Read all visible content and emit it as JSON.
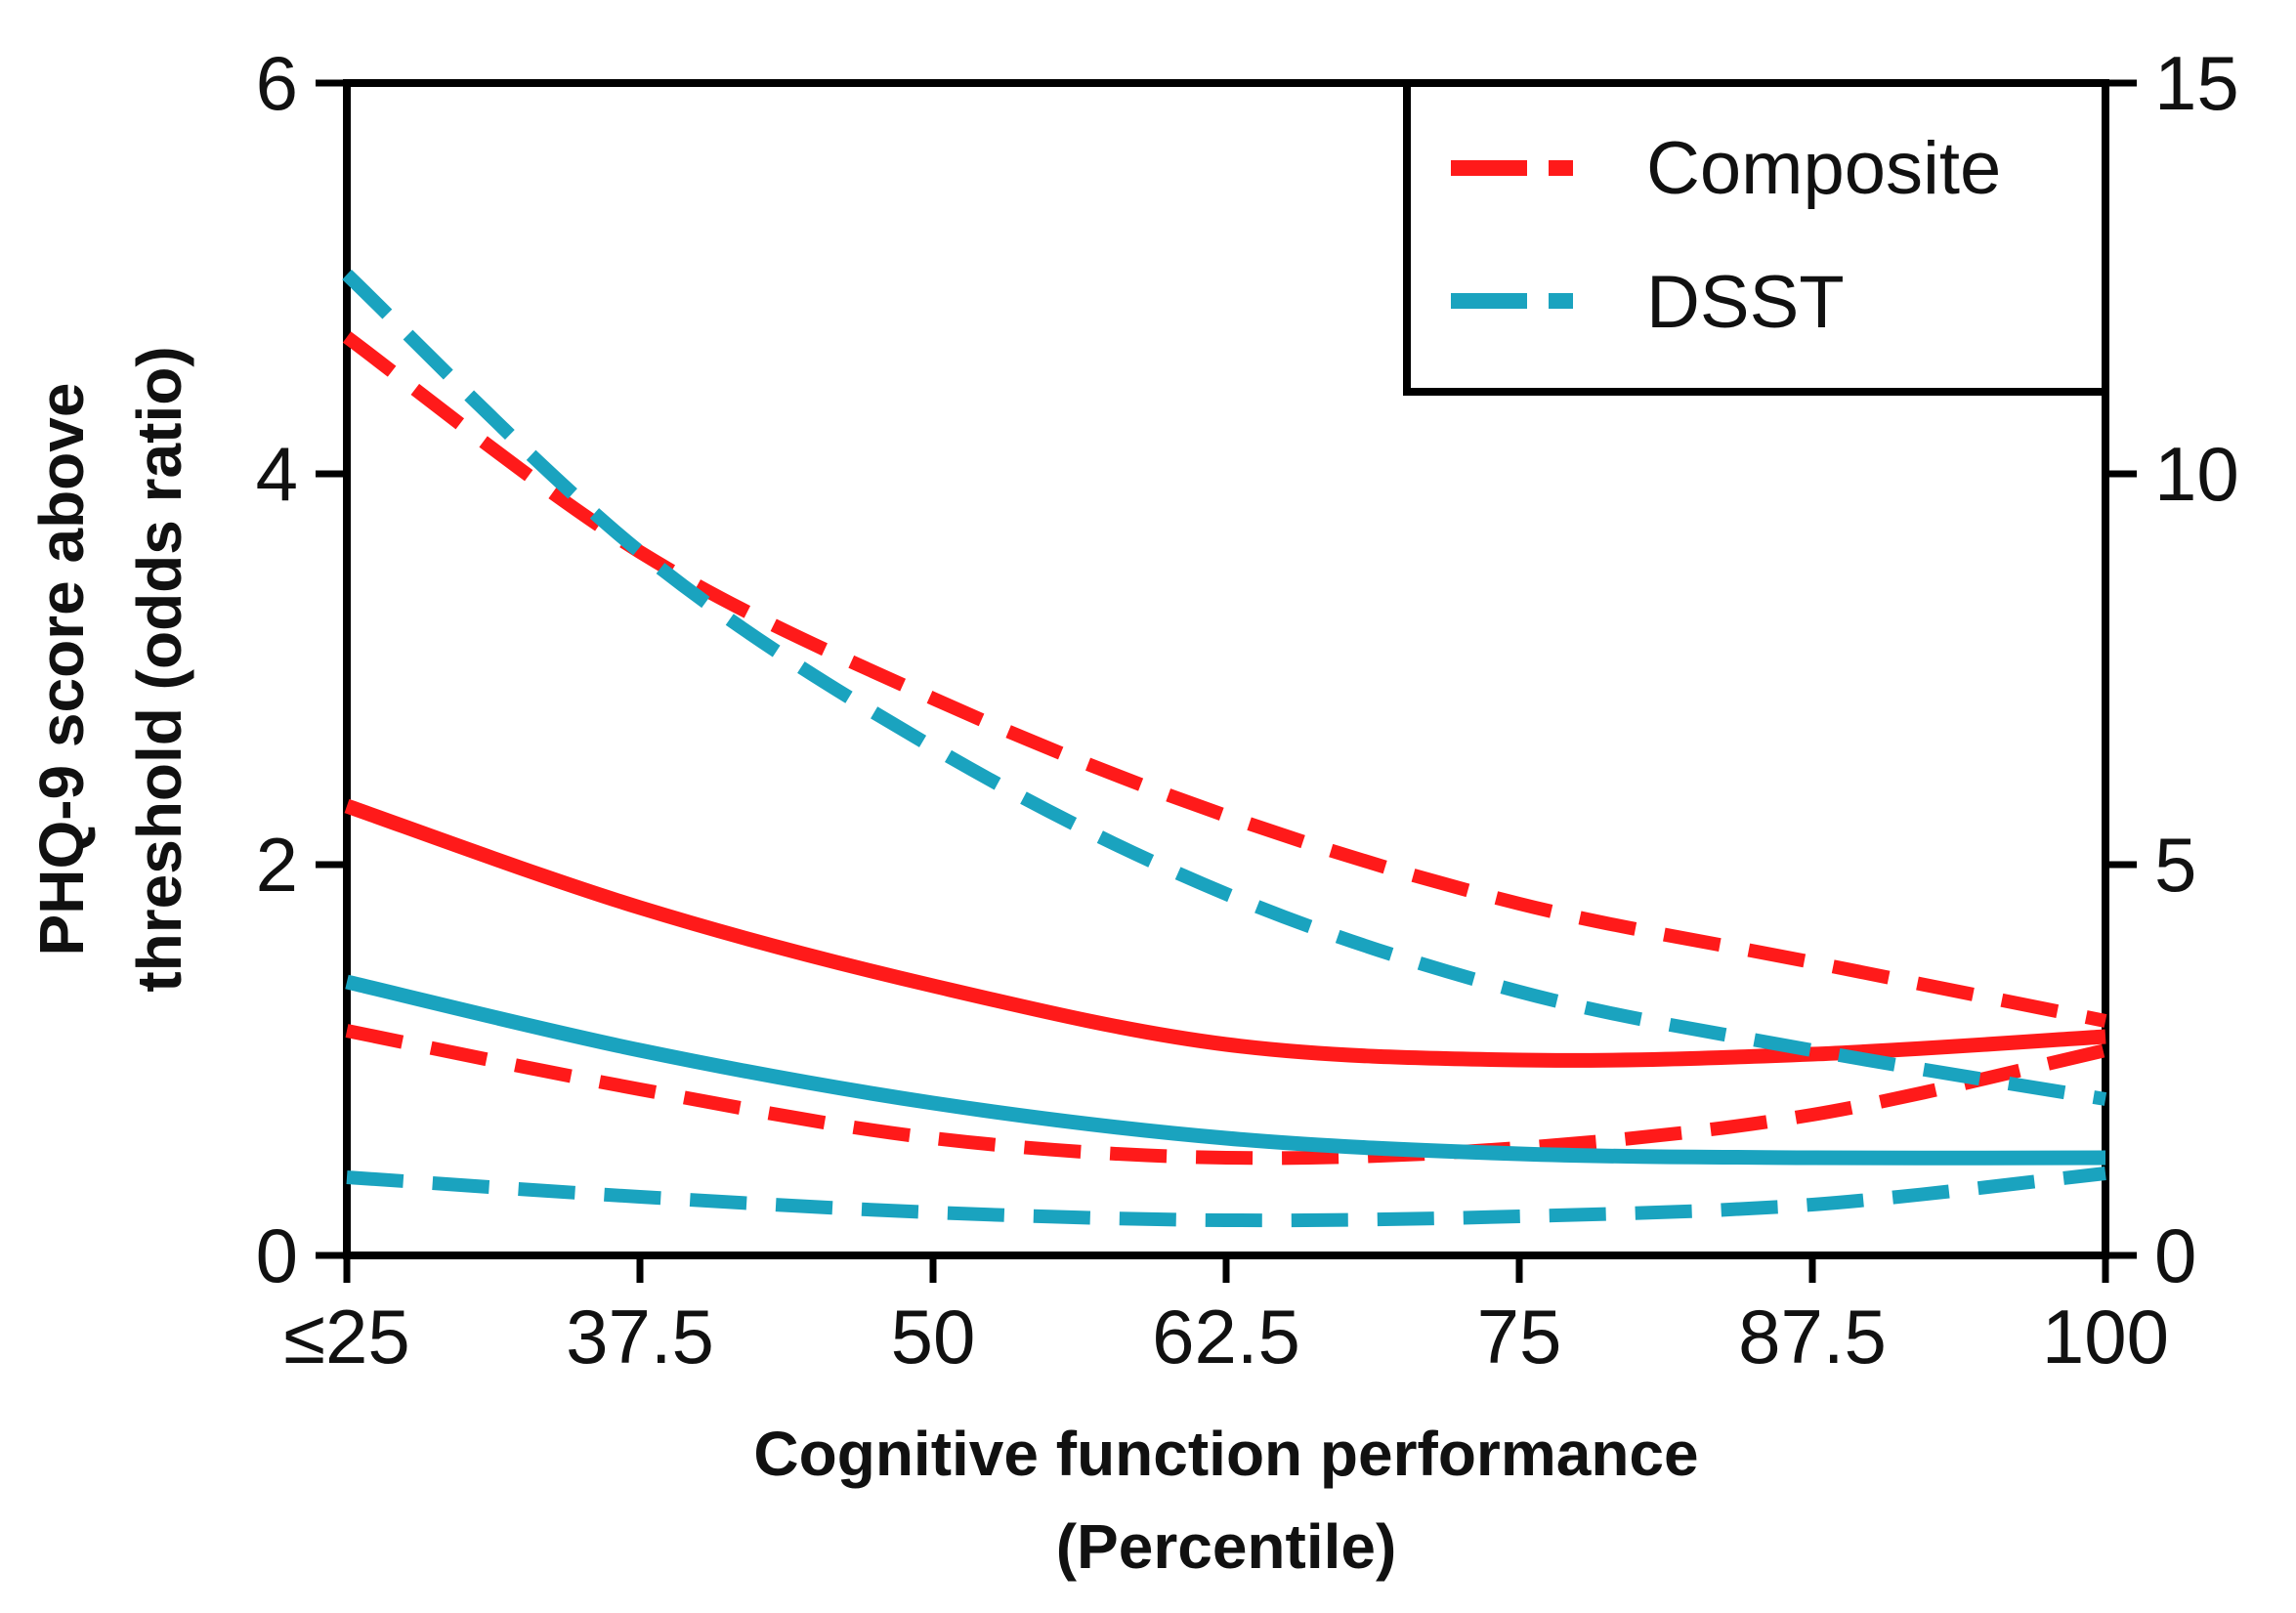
{
  "chart_data": {
    "type": "line",
    "title": "",
    "xlabel_line1": "Cognitive function performance",
    "xlabel_line2": "(Percentile)",
    "ylabel_line1": "PHQ-9 score above",
    "ylabel_line2": "threshold (odds ratio)",
    "x_ticks": [
      "≤25",
      "37.5",
      "50",
      "62.5",
      "75",
      "87.5",
      "100"
    ],
    "x_tick_values": [
      25,
      37.5,
      50,
      62.5,
      75,
      87.5,
      100
    ],
    "xlim": [
      25,
      100
    ],
    "y_left_ticks": [
      "0",
      "2",
      "4",
      "6"
    ],
    "y_left_tick_values": [
      0,
      2,
      4,
      6
    ],
    "ylim_left": [
      0,
      6
    ],
    "y_right_ticks": [
      "0",
      "5",
      "10",
      "15"
    ],
    "y_right_tick_values": [
      0,
      5,
      10,
      15
    ],
    "ylim_right": [
      0,
      15
    ],
    "legend_position": "top-right",
    "x": [
      25,
      37.5,
      50,
      62.5,
      75,
      87.5,
      100
    ],
    "series": [
      {
        "name": "Composite",
        "role": "estimate",
        "style": "solid",
        "color": "#ff1a1a",
        "values": [
          2.3,
          1.78,
          1.38,
          1.08,
          1.0,
          1.03,
          1.12
        ]
      },
      {
        "name": "Composite upper CI",
        "role": "ci",
        "style": "dashed",
        "color": "#ff1a1a",
        "values": [
          4.7,
          3.6,
          2.85,
          2.25,
          1.8,
          1.5,
          1.2
        ]
      },
      {
        "name": "Composite lower CI",
        "role": "ci",
        "style": "dashed",
        "color": "#ff1a1a",
        "values": [
          1.15,
          0.85,
          0.6,
          0.5,
          0.55,
          0.72,
          1.05
        ]
      },
      {
        "name": "DSST",
        "role": "estimate",
        "style": "solid",
        "color": "#1aa3bf",
        "values": [
          1.4,
          1.05,
          0.78,
          0.6,
          0.52,
          0.5,
          0.5
        ]
      },
      {
        "name": "DSST upper CI",
        "role": "ci",
        "style": "dashed",
        "color": "#1aa3bf",
        "values": [
          5.02,
          3.6,
          2.6,
          1.85,
          1.35,
          1.05,
          0.8
        ]
      },
      {
        "name": "DSST lower CI",
        "role": "ci",
        "style": "dashed",
        "color": "#1aa3bf",
        "values": [
          0.4,
          0.3,
          0.22,
          0.18,
          0.2,
          0.26,
          0.42
        ]
      }
    ],
    "legend": [
      {
        "label": "Composite",
        "color": "#ff1a1a"
      },
      {
        "label": "DSST",
        "color": "#1aa3bf"
      }
    ]
  }
}
